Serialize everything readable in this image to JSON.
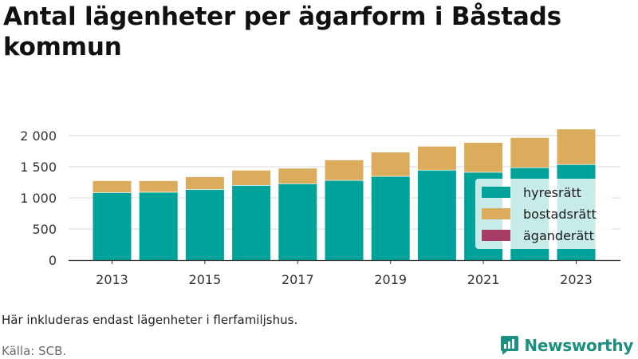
{
  "title": "Antal lägenheter per ägarform i Båstads kommun",
  "note": "Här inkluderas endast lägenheter i flerfamiljshus.",
  "source": "Källa: SCB.",
  "brand": {
    "name": "Newsworthy",
    "logo_icon": "newsworthy-logo-icon",
    "color": "#1c8f80"
  },
  "colors": {
    "hyresratt": "#00a399",
    "bostadsratt": "#dbac5b",
    "aganderatt": "#a53d67",
    "grid": "#d9d9d9",
    "axis": "#333333"
  },
  "chart_data": {
    "type": "bar",
    "stacked": true,
    "title": "Antal lägenheter per ägarform i Båstads kommun",
    "xlabel": "",
    "ylabel": "",
    "x": [
      2013,
      2014,
      2015,
      2016,
      2017,
      2018,
      2019,
      2020,
      2021,
      2022,
      2023
    ],
    "x_tick_labels": [
      "2013",
      "2015",
      "2017",
      "2019",
      "2021",
      "2023"
    ],
    "x_ticks": [
      2013,
      2015,
      2017,
      2019,
      2021,
      2023
    ],
    "ylim": [
      0,
      2000
    ],
    "y_ticks": [
      0,
      500,
      1000,
      1500,
      2000
    ],
    "y_tick_labels": [
      "0",
      "500",
      "1 000",
      "1 500",
      "2 000"
    ],
    "grid": true,
    "legend_position": "bottom-right",
    "series": [
      {
        "name": "hyresrätt",
        "color": "#00a399",
        "values": [
          1090,
          1095,
          1140,
          1205,
          1230,
          1285,
          1350,
          1450,
          1415,
          1490,
          1540
        ]
      },
      {
        "name": "bostadsrätt",
        "color": "#dbac5b",
        "values": [
          190,
          185,
          205,
          245,
          250,
          330,
          390,
          385,
          480,
          485,
          570
        ]
      },
      {
        "name": "äganderätt",
        "color": "#a53d67",
        "values": [
          0,
          0,
          0,
          0,
          0,
          0,
          0,
          0,
          0,
          0,
          0
        ]
      }
    ]
  }
}
